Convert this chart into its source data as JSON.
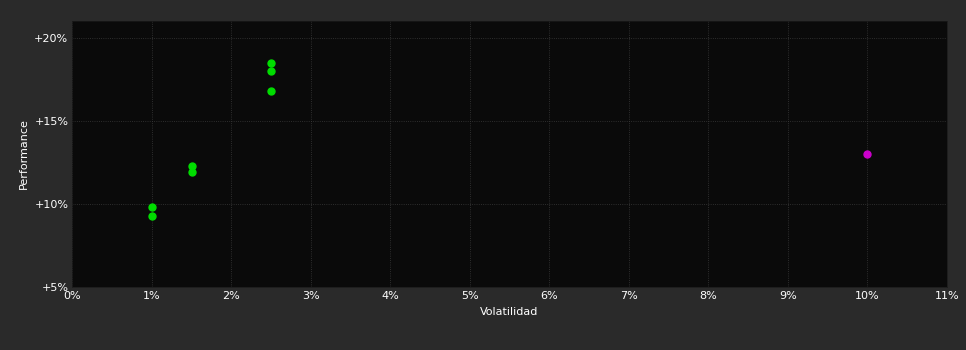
{
  "bg_color": "#2a2a2a",
  "plot_bg_color": "#0a0a0a",
  "grid_color": "#3a3a3a",
  "text_color": "#ffffff",
  "green_points": [
    [
      1.0,
      9.8
    ],
    [
      1.0,
      9.3
    ],
    [
      1.5,
      12.3
    ],
    [
      1.5,
      11.9
    ],
    [
      2.5,
      18.5
    ],
    [
      2.5,
      18.0
    ],
    [
      2.5,
      16.8
    ]
  ],
  "magenta_points": [
    [
      10.0,
      13.0
    ]
  ],
  "green_color": "#00dd00",
  "magenta_color": "#cc00cc",
  "xlabel": "Volatilidad",
  "ylabel": "Performance",
  "xlim": [
    0,
    11
  ],
  "ylim": [
    5,
    21
  ],
  "xticks": [
    0,
    1,
    2,
    3,
    4,
    5,
    6,
    7,
    8,
    9,
    10,
    11
  ],
  "yticks": [
    5,
    10,
    15,
    20
  ],
  "ytick_labels": [
    "+5%",
    "+10%",
    "+15%",
    "+20%"
  ],
  "xtick_labels": [
    "0%",
    "1%",
    "2%",
    "3%",
    "4%",
    "5%",
    "6%",
    "7%",
    "8%",
    "9%",
    "10%",
    "11%"
  ],
  "marker_size": 25,
  "font_size": 8
}
